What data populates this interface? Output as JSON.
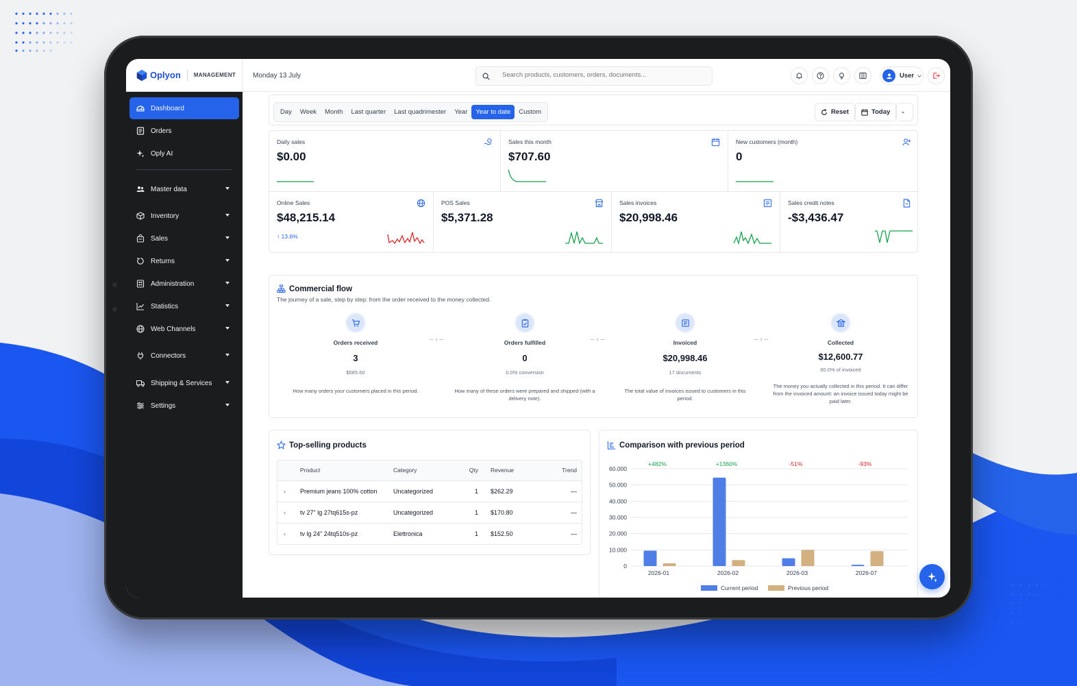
{
  "brand": {
    "name": "Oplyon",
    "subtitle": "MANAGEMENT",
    "accent": "#2563eb"
  },
  "sidebar": {
    "items": [
      {
        "label": "Dashboard",
        "icon": "dashboard-icon",
        "active": true
      },
      {
        "label": "Orders",
        "icon": "orders-icon"
      },
      {
        "label": "Oply AI",
        "icon": "sparkle-icon"
      },
      {
        "label": "Master data",
        "icon": "users-icon",
        "has_children": true
      },
      {
        "label": "Inventory",
        "icon": "box-icon",
        "has_children": true
      },
      {
        "label": "Sales",
        "icon": "bag-icon",
        "has_children": true
      },
      {
        "label": "Returns",
        "icon": "return-icon",
        "has_children": true
      },
      {
        "label": "Administration",
        "icon": "admin-icon",
        "has_children": true
      },
      {
        "label": "Statistics",
        "icon": "chart-icon",
        "has_children": true
      },
      {
        "label": "Web Channels",
        "icon": "globe-icon",
        "has_children": true
      },
      {
        "label": "Connectors",
        "icon": "plug-icon",
        "has_children": true
      },
      {
        "label": "Shipping & Services",
        "icon": "truck-icon",
        "has_children": true
      },
      {
        "label": "Settings",
        "icon": "sliders-icon",
        "has_children": true
      }
    ]
  },
  "header": {
    "date": "Monday 13 July",
    "search_placeholder": "Search products, customers, orders, documents...",
    "user": "User"
  },
  "filters": {
    "periods": [
      "Day",
      "Week",
      "Month",
      "Last quarter",
      "Last quadrimester",
      "Year",
      "Year to date",
      "Custom"
    ],
    "active_period": "Year to date",
    "reset_label": "Reset",
    "today_label": "Today"
  },
  "kpis": [
    {
      "label": "Daily sales",
      "value": "$0.00",
      "icon": "hand-coin-icon"
    },
    {
      "label": "Sales this month",
      "value": "$707.60",
      "icon": "calendar-icon"
    },
    {
      "label": "New customers (month)",
      "value": "0",
      "icon": "user-plus-icon"
    },
    {
      "label": "Online Sales",
      "value": "$48,215.14",
      "delta": "↑ 13.6%",
      "icon": "globe-icon"
    },
    {
      "label": "POS Sales",
      "value": "$5,371.28",
      "icon": "store-icon"
    },
    {
      "label": "Sales invoices",
      "value": "$20,998.46",
      "icon": "invoice-icon"
    },
    {
      "label": "Sales credit notes",
      "value": "-$3,436.47",
      "icon": "document-icon"
    }
  ],
  "flow": {
    "title": "Commercial flow",
    "subtitle": "The journey of a sale, step by step: from the order received to the money collected.",
    "steps": [
      {
        "label": "Orders received",
        "value": "3",
        "sub": "$585.60",
        "desc": "How many orders your customers placed in this period."
      },
      {
        "label": "Orders fulfilled",
        "value": "0",
        "sub": "0.0% conversion",
        "desc": "How many of these orders were prepared and shipped (with a delivery note)."
      },
      {
        "label": "Invoiced",
        "value": "$20,998.46",
        "sub": "17 documents",
        "desc": "The total value of invoices issued to customers in this period."
      },
      {
        "label": "Collected",
        "value": "$12,600.77",
        "sub": "60.0% of invoiced",
        "desc": "The money you actually collected in this period. It can differ from the invoiced amount: an invoice issued today might be paid later."
      }
    ]
  },
  "top_products": {
    "title": "Top-selling products",
    "columns": [
      "Product",
      "Category",
      "Qty",
      "Revenue",
      "Trend"
    ],
    "rows": [
      {
        "product": "Premium jeans 100% cotton",
        "category": "Uncategorized",
        "qty": "1",
        "revenue": "$262.29",
        "trend": "—"
      },
      {
        "product": "tv 27\" lg 27tq615s-pz",
        "category": "Uncategorized",
        "qty": "1",
        "revenue": "$170.80",
        "trend": "—"
      },
      {
        "product": "tv lg 24\" 24tq510s-pz",
        "category": "Elettronica",
        "qty": "1",
        "revenue": "$152.50",
        "trend": "—"
      }
    ]
  },
  "comparison": {
    "title": "Comparison with previous period"
  },
  "chart_data": {
    "type": "bar",
    "categories": [
      "2026-01",
      "2026-02",
      "2026-03",
      "2026-07"
    ],
    "series": [
      {
        "name": "Current period",
        "values": [
          9500,
          54500,
          4800,
          800
        ],
        "color": "#4f7fe6"
      },
      {
        "name": "Previous period",
        "values": [
          1700,
          3700,
          10000,
          9200
        ],
        "color": "#d2b07f"
      }
    ],
    "changes": [
      "+482%",
      "+1360%",
      "-51%",
      "-93%"
    ],
    "ylim": [
      0,
      60000
    ],
    "y_ticks": [
      "0",
      "10.000",
      "20.000",
      "30.000",
      "40.000",
      "50.000",
      "60.000"
    ],
    "grid": true,
    "legend": "bottom"
  }
}
